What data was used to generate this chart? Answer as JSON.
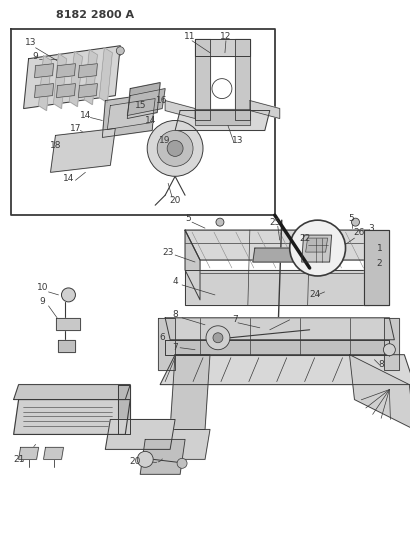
{
  "title": "8182 2800 A",
  "bg_color": "#ffffff",
  "lc": "#3a3a3a",
  "figsize": [
    4.11,
    5.33
  ],
  "dpi": 100,
  "title_fs": 8,
  "label_fs": 6.5
}
